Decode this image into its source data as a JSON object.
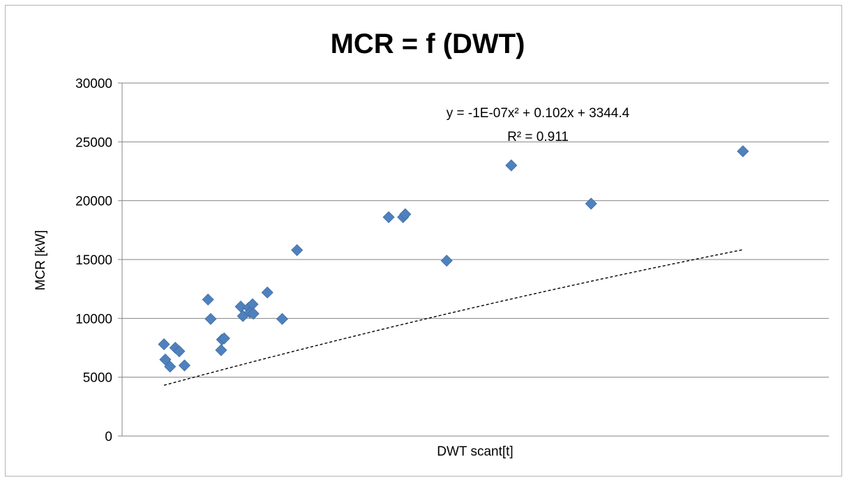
{
  "chart_data": {
    "type": "scatter",
    "title": "MCR = f (DWT)",
    "xlabel": "DWT scant[t]",
    "ylabel": "MCR [kW]",
    "ylim": [
      0,
      30000
    ],
    "yticks": [
      "0",
      "5000",
      "10000",
      "15000",
      "20000",
      "25000",
      "30000"
    ],
    "xlim": [
      0,
      162000
    ],
    "x_tick_labels_shown": false,
    "grid": "horizontal",
    "legend": "none",
    "marker": "diamond",
    "marker_color": "#4F81BD",
    "series": [
      {
        "points": [
          {
            "x": 9600,
            "y": 7800
          },
          {
            "x": 9900,
            "y": 6500
          },
          {
            "x": 11000,
            "y": 5900
          },
          {
            "x": 12200,
            "y": 7500
          },
          {
            "x": 13100,
            "y": 7200
          },
          {
            "x": 14300,
            "y": 6000
          },
          {
            "x": 19700,
            "y": 11600
          },
          {
            "x": 20300,
            "y": 9950
          },
          {
            "x": 22700,
            "y": 7300
          },
          {
            "x": 22900,
            "y": 8200
          },
          {
            "x": 23400,
            "y": 8300
          },
          {
            "x": 27200,
            "y": 11000
          },
          {
            "x": 27700,
            "y": 10200
          },
          {
            "x": 29000,
            "y": 10900
          },
          {
            "x": 29300,
            "y": 10500
          },
          {
            "x": 29900,
            "y": 11200
          },
          {
            "x": 30100,
            "y": 10400
          },
          {
            "x": 33300,
            "y": 12200
          },
          {
            "x": 36700,
            "y": 9950
          },
          {
            "x": 40100,
            "y": 15800
          },
          {
            "x": 61100,
            "y": 18600
          },
          {
            "x": 64400,
            "y": 18600
          },
          {
            "x": 64900,
            "y": 18850
          },
          {
            "x": 74400,
            "y": 14900
          },
          {
            "x": 89200,
            "y": 23000
          },
          {
            "x": 107500,
            "y": 19750
          },
          {
            "x": 142300,
            "y": 24200
          }
        ]
      }
    ],
    "trendline": {
      "kind": "polynomial",
      "a": -1e-07,
      "b": 0.102,
      "c": 3344.4,
      "x_range": [
        9600,
        142300
      ],
      "equation_label": "y = -1E-07x² + 0.102x + 3344.4",
      "r2_label": "R² = 0.911"
    }
  }
}
